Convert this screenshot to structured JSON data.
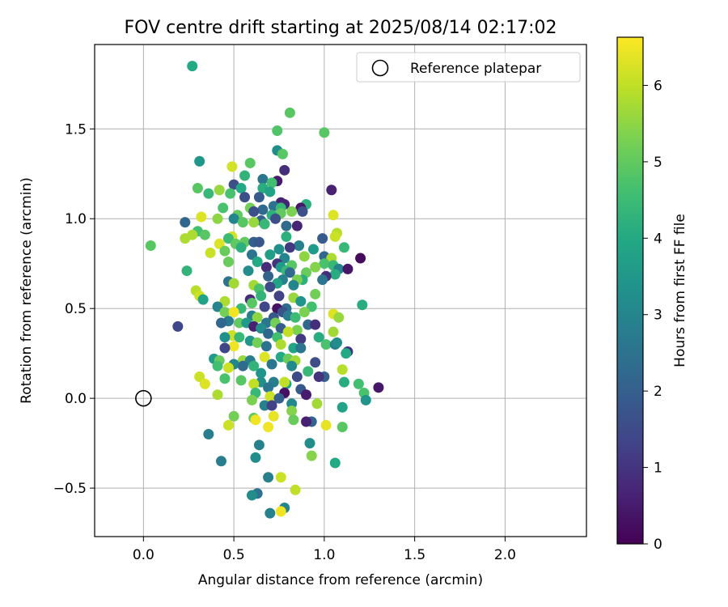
{
  "chart_data": {
    "type": "scatter",
    "title": "FOV centre drift starting at 2025/08/14 02:17:02",
    "xlabel": "Angular distance from reference (arcmin)",
    "ylabel": "Rotation from reference (arcmin)",
    "xlim": [
      -0.27,
      2.45
    ],
    "ylim": [
      -0.77,
      1.97
    ],
    "xticks": [
      0.0,
      0.5,
      1.0,
      1.5,
      2.0
    ],
    "xtick_labels": [
      "0.0",
      "0.5",
      "1.0",
      "1.5",
      "2.0"
    ],
    "yticks": [
      -0.5,
      0.0,
      0.5,
      1.0,
      1.5
    ],
    "ytick_labels": [
      "−0.5",
      "0.0",
      "0.5",
      "1.0",
      "1.5"
    ],
    "grid": true,
    "legend": {
      "placement": "top-right",
      "entries": [
        "Reference platepar"
      ]
    },
    "reference_point": {
      "x": 0.0,
      "y": 0.0,
      "label": "Reference platepar"
    },
    "colorbar": {
      "label": "Hours from first FF file",
      "min": 0,
      "max": 6.63,
      "ticks": [
        0,
        1,
        2,
        3,
        4,
        5,
        6
      ],
      "tick_labels": [
        "0",
        "1",
        "2",
        "3",
        "4",
        "5",
        "6"
      ],
      "colormap": "viridis"
    },
    "points": [
      [
        0.27,
        1.85,
        4.0
      ],
      [
        0.81,
        1.59,
        4.9
      ],
      [
        0.74,
        1.49,
        4.8
      ],
      [
        1.0,
        1.48,
        4.9
      ],
      [
        0.74,
        1.38,
        3.2
      ],
      [
        0.77,
        1.36,
        4.9
      ],
      [
        0.31,
        1.32,
        3.5
      ],
      [
        0.59,
        1.31,
        4.9
      ],
      [
        0.49,
        1.29,
        6.2
      ],
      [
        0.78,
        1.27,
        0.9
      ],
      [
        0.74,
        1.21,
        0.5
      ],
      [
        0.66,
        1.22,
        2.6
      ],
      [
        0.71,
        1.2,
        4.6
      ],
      [
        0.56,
        1.24,
        4.3
      ],
      [
        0.3,
        1.17,
        4.9
      ],
      [
        0.5,
        1.19,
        1.6
      ],
      [
        0.54,
        1.17,
        4.0
      ],
      [
        0.36,
        1.14,
        4.4
      ],
      [
        0.42,
        1.16,
        5.6
      ],
      [
        0.66,
        1.17,
        4.1
      ],
      [
        0.7,
        1.15,
        3.8
      ],
      [
        1.04,
        1.16,
        0.6
      ],
      [
        0.48,
        1.14,
        4.7
      ],
      [
        0.64,
        1.12,
        1.9
      ],
      [
        0.56,
        1.12,
        1.6
      ],
      [
        0.76,
        1.09,
        0.6
      ],
      [
        0.78,
        1.08,
        0.7
      ],
      [
        0.9,
        1.08,
        4.2
      ],
      [
        0.72,
        1.07,
        2.5
      ],
      [
        0.76,
        1.06,
        4.4
      ],
      [
        0.87,
        1.06,
        0.4
      ],
      [
        0.44,
        1.06,
        4.7
      ],
      [
        0.59,
        1.06,
        5.2
      ],
      [
        0.66,
        1.05,
        2.3
      ],
      [
        0.82,
        1.04,
        5.3
      ],
      [
        0.88,
        1.04,
        1.6
      ],
      [
        0.61,
        1.04,
        1.6
      ],
      [
        0.76,
        1.03,
        5.0
      ],
      [
        0.71,
        1.02,
        4.2
      ],
      [
        0.52,
        1.02,
        5.0
      ],
      [
        1.05,
        1.02,
        6.3
      ],
      [
        0.5,
        1.0,
        3.0
      ],
      [
        0.65,
        0.99,
        2.1
      ],
      [
        0.73,
        1.0,
        1.6
      ],
      [
        0.41,
        1.0,
        5.5
      ],
      [
        0.32,
        1.01,
        6.3
      ],
      [
        0.23,
        0.98,
        2.2
      ],
      [
        0.61,
        0.98,
        5.6
      ],
      [
        0.55,
        0.98,
        4.9
      ],
      [
        0.67,
        0.97,
        4.4
      ],
      [
        0.79,
        0.96,
        2.3
      ],
      [
        0.85,
        0.96,
        0.7
      ],
      [
        0.3,
        0.93,
        4.6
      ],
      [
        0.34,
        0.91,
        4.9
      ],
      [
        0.27,
        0.91,
        5.8
      ],
      [
        0.23,
        0.89,
        5.8
      ],
      [
        0.49,
        0.9,
        6.2
      ],
      [
        1.07,
        0.92,
        5.9
      ],
      [
        0.47,
        0.89,
        4.5
      ],
      [
        1.06,
        0.9,
        6.1
      ],
      [
        0.79,
        0.9,
        4.2
      ],
      [
        0.99,
        0.89,
        1.9
      ],
      [
        0.56,
        0.87,
        5.0
      ],
      [
        0.61,
        0.87,
        2.0
      ],
      [
        0.64,
        0.87,
        1.8
      ],
      [
        0.51,
        0.86,
        5.0
      ],
      [
        0.42,
        0.86,
        6.3
      ],
      [
        0.04,
        0.85,
        4.9
      ],
      [
        0.86,
        0.85,
        2.9
      ],
      [
        0.54,
        0.84,
        4.2
      ],
      [
        0.81,
        0.84,
        1.1
      ],
      [
        0.75,
        0.83,
        3.3
      ],
      [
        0.94,
        0.83,
        3.6
      ],
      [
        1.11,
        0.84,
        4.4
      ],
      [
        0.45,
        0.82,
        5.1
      ],
      [
        0.37,
        0.81,
        6.1
      ],
      [
        0.6,
        0.8,
        2.6
      ],
      [
        0.7,
        0.8,
        3.7
      ],
      [
        0.89,
        0.79,
        5.5
      ],
      [
        1.0,
        0.79,
        2.2
      ],
      [
        0.78,
        0.78,
        3.0
      ],
      [
        1.04,
        0.78,
        5.8
      ],
      [
        1.2,
        0.78,
        0.2
      ],
      [
        0.47,
        0.76,
        5.1
      ],
      [
        0.63,
        0.76,
        4.0
      ],
      [
        0.74,
        0.75,
        1.0
      ],
      [
        0.82,
        0.74,
        4.9
      ],
      [
        1.0,
        0.75,
        4.7
      ],
      [
        1.05,
        0.74,
        4.4
      ],
      [
        0.68,
        0.73,
        0.9
      ],
      [
        0.76,
        0.73,
        3.6
      ],
      [
        0.95,
        0.73,
        5.4
      ],
      [
        1.08,
        0.72,
        2.9
      ],
      [
        1.13,
        0.72,
        0.4
      ],
      [
        0.24,
        0.71,
        4.3
      ],
      [
        0.58,
        0.71,
        3.2
      ],
      [
        0.79,
        0.71,
        4.4
      ],
      [
        0.81,
        0.7,
        2.3
      ],
      [
        0.9,
        0.7,
        5.1
      ],
      [
        1.06,
        0.69,
        4.1
      ],
      [
        1.01,
        0.68,
        0.9
      ],
      [
        0.69,
        0.68,
        2.1
      ],
      [
        0.77,
        0.66,
        2.9
      ],
      [
        0.88,
        0.66,
        4.2
      ],
      [
        0.85,
        0.66,
        5.3
      ],
      [
        0.47,
        0.65,
        2.5
      ],
      [
        0.99,
        0.66,
        2.6
      ],
      [
        0.5,
        0.64,
        5.7
      ],
      [
        0.74,
        0.64,
        3.8
      ],
      [
        0.61,
        0.63,
        5.7
      ],
      [
        0.83,
        0.63,
        3.0
      ],
      [
        0.7,
        0.62,
        1.5
      ],
      [
        0.64,
        0.61,
        4.7
      ],
      [
        0.29,
        0.6,
        5.9
      ],
      [
        0.31,
        0.57,
        6.1
      ],
      [
        0.95,
        0.58,
        5.2
      ],
      [
        0.65,
        0.57,
        4.3
      ],
      [
        0.75,
        0.57,
        1.3
      ],
      [
        0.33,
        0.55,
        3.8
      ],
      [
        0.59,
        0.55,
        0.8
      ],
      [
        0.83,
        0.56,
        5.6
      ],
      [
        0.45,
        0.54,
        5.8
      ],
      [
        0.87,
        0.54,
        3.4
      ],
      [
        0.6,
        0.53,
        4.9
      ],
      [
        1.21,
        0.52,
        4.1
      ],
      [
        0.41,
        0.51,
        3.0
      ],
      [
        0.54,
        0.5,
        4.4
      ],
      [
        0.67,
        0.51,
        1.4
      ],
      [
        0.79,
        0.5,
        2.4
      ],
      [
        0.93,
        0.51,
        4.6
      ],
      [
        0.74,
        0.5,
        0.3
      ],
      [
        0.45,
        0.48,
        5.2
      ],
      [
        0.5,
        0.48,
        6.5
      ],
      [
        0.77,
        0.48,
        1.7
      ],
      [
        0.89,
        0.48,
        5.3
      ],
      [
        1.05,
        0.47,
        6.3
      ],
      [
        0.6,
        0.46,
        2.9
      ],
      [
        0.63,
        0.45,
        5.5
      ],
      [
        0.72,
        0.45,
        1.8
      ],
      [
        0.8,
        0.46,
        2.8
      ],
      [
        0.84,
        0.45,
        4.5
      ],
      [
        1.08,
        0.45,
        5.6
      ],
      [
        0.47,
        0.43,
        2.7
      ],
      [
        0.53,
        0.42,
        5.0
      ],
      [
        0.57,
        0.42,
        3.6
      ],
      [
        0.68,
        0.42,
        2.6
      ],
      [
        0.73,
        0.42,
        5.2
      ],
      [
        0.91,
        0.41,
        2.2
      ],
      [
        0.95,
        0.41,
        0.9
      ],
      [
        0.19,
        0.4,
        1.4
      ],
      [
        0.43,
        0.42,
        2.2
      ],
      [
        0.61,
        0.4,
        0.6
      ],
      [
        0.65,
        0.39,
        3.2
      ],
      [
        0.76,
        0.39,
        1.9
      ],
      [
        0.85,
        0.38,
        5.3
      ],
      [
        1.05,
        0.37,
        5.7
      ],
      [
        0.8,
        0.37,
        6.0
      ],
      [
        0.69,
        0.36,
        2.2
      ],
      [
        0.49,
        0.35,
        6.1
      ],
      [
        0.53,
        0.34,
        4.4
      ],
      [
        0.45,
        0.34,
        3.3
      ],
      [
        0.74,
        0.34,
        4.6
      ],
      [
        0.87,
        0.33,
        1.1
      ],
      [
        0.97,
        0.34,
        4.1
      ],
      [
        0.59,
        0.32,
        3.5
      ],
      [
        0.63,
        0.31,
        5.2
      ],
      [
        0.76,
        0.3,
        5.8
      ],
      [
        1.01,
        0.3,
        4.7
      ],
      [
        1.06,
        0.3,
        2.8
      ],
      [
        0.5,
        0.29,
        6.5
      ],
      [
        0.68,
        0.29,
        2.5
      ],
      [
        0.83,
        0.28,
        3.9
      ],
      [
        0.87,
        0.28,
        2.6
      ],
      [
        0.45,
        0.28,
        1.4
      ],
      [
        1.07,
        0.31,
        3.2
      ],
      [
        1.13,
        0.26,
        1.0
      ],
      [
        0.39,
        0.22,
        3.6
      ],
      [
        0.55,
        0.21,
        5.6
      ],
      [
        0.59,
        0.21,
        2.8
      ],
      [
        0.67,
        0.23,
        6.3
      ],
      [
        0.76,
        0.23,
        4.0
      ],
      [
        0.8,
        0.22,
        5.1
      ],
      [
        0.84,
        0.21,
        5.7
      ],
      [
        1.12,
        0.25,
        4.0
      ],
      [
        0.95,
        0.2,
        1.6
      ],
      [
        0.42,
        0.21,
        5.1
      ],
      [
        0.5,
        0.19,
        3.0
      ],
      [
        0.55,
        0.18,
        2.3
      ],
      [
        0.61,
        0.18,
        4.3
      ],
      [
        0.71,
        0.19,
        2.6
      ],
      [
        0.82,
        0.18,
        3.1
      ],
      [
        0.91,
        0.15,
        4.4
      ],
      [
        1.1,
        0.16,
        5.9
      ],
      [
        0.41,
        0.18,
        4.6
      ],
      [
        0.47,
        0.17,
        6.1
      ],
      [
        0.65,
        0.14,
        3.4
      ],
      [
        0.85,
        0.12,
        1.5
      ],
      [
        1.0,
        0.12,
        2.0
      ],
      [
        0.97,
        0.12,
        1.0
      ],
      [
        0.31,
        0.12,
        6.1
      ],
      [
        0.45,
        0.11,
        4.7
      ],
      [
        0.54,
        0.1,
        4.9
      ],
      [
        0.65,
        0.09,
        3.3
      ],
      [
        0.72,
        0.09,
        2.8
      ],
      [
        0.79,
        0.08,
        3.9
      ],
      [
        0.78,
        0.09,
        6.0
      ],
      [
        1.19,
        0.08,
        4.6
      ],
      [
        0.34,
        0.08,
        6.3
      ],
      [
        0.61,
        0.08,
        6.0
      ],
      [
        1.11,
        0.09,
        4.1
      ],
      [
        0.69,
        0.06,
        2.6
      ],
      [
        1.3,
        0.06,
        0.4
      ],
      [
        0.87,
        0.05,
        1.8
      ],
      [
        1.22,
        0.03,
        4.7
      ],
      [
        0.41,
        0.02,
        5.8
      ],
      [
        0.62,
        0.03,
        4.4
      ],
      [
        0.78,
        0.03,
        0.3
      ],
      [
        0.9,
        0.02,
        0.5
      ],
      [
        0.7,
        0.01,
        6.1
      ],
      [
        0.75,
        0.0,
        2.0
      ],
      [
        0.6,
        -0.01,
        5.3
      ],
      [
        1.23,
        -0.01,
        3.4
      ],
      [
        0.82,
        -0.03,
        3.1
      ],
      [
        0.96,
        -0.03,
        5.7
      ],
      [
        0.67,
        -0.04,
        2.9
      ],
      [
        0.71,
        -0.04,
        1.3
      ],
      [
        1.1,
        -0.05,
        3.8
      ],
      [
        0.82,
        -0.07,
        5.4
      ],
      [
        0.5,
        -0.1,
        5.2
      ],
      [
        0.72,
        -0.1,
        6.4
      ],
      [
        0.61,
        -0.11,
        5.0
      ],
      [
        0.62,
        -0.12,
        6.5
      ],
      [
        0.83,
        -0.12,
        5.1
      ],
      [
        0.93,
        -0.13,
        2.1
      ],
      [
        0.9,
        -0.13,
        0.6
      ],
      [
        1.01,
        -0.15,
        6.4
      ],
      [
        1.1,
        -0.16,
        4.9
      ],
      [
        0.69,
        -0.16,
        6.5
      ],
      [
        0.47,
        -0.15,
        6.1
      ],
      [
        0.36,
        -0.2,
        2.8
      ],
      [
        0.92,
        -0.25,
        3.2
      ],
      [
        0.64,
        -0.26,
        2.9
      ],
      [
        0.62,
        -0.33,
        3.2
      ],
      [
        0.93,
        -0.32,
        5.4
      ],
      [
        0.43,
        -0.35,
        2.8
      ],
      [
        1.06,
        -0.36,
        4.0
      ],
      [
        0.76,
        -0.44,
        6.1
      ],
      [
        0.69,
        -0.44,
        2.9
      ],
      [
        0.84,
        -0.51,
        6.0
      ],
      [
        0.63,
        -0.53,
        2.5
      ],
      [
        0.6,
        -0.54,
        3.2
      ],
      [
        0.78,
        -0.61,
        3.0
      ],
      [
        0.7,
        -0.64,
        2.9
      ],
      [
        0.76,
        -0.63,
        6.5
      ]
    ]
  }
}
